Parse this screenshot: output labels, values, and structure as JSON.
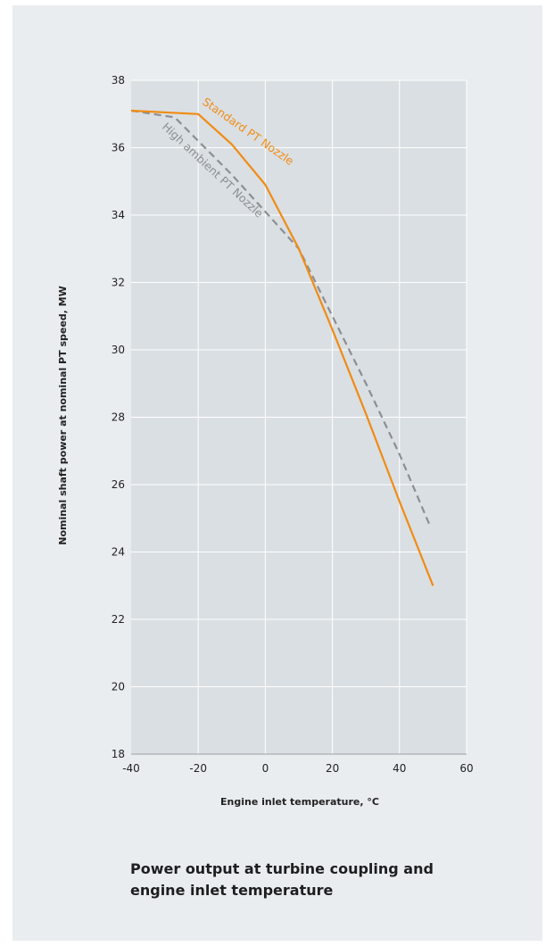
{
  "caption": {
    "line1": "Power output at turbine coupling and",
    "line2": "engine inlet temperature"
  },
  "chart_data": {
    "type": "line",
    "xlabel": "Engine inlet temperature, °C",
    "ylabel": "Nominal shaft power at nominal PT speed, MW",
    "xlim": [
      -40,
      60
    ],
    "ylim": [
      18,
      38
    ],
    "xticks": [
      -40,
      -20,
      0,
      20,
      40,
      60
    ],
    "yticks": [
      18,
      20,
      22,
      24,
      26,
      28,
      30,
      32,
      34,
      36,
      38
    ],
    "grid": true,
    "legend": "inline labels along lines",
    "colors": {
      "plot_background": "#dadfe3",
      "panel_background": "#e9edf0",
      "grid": "#ffffff",
      "standard": "#f08c14",
      "high_ambient": "#8c8f92"
    },
    "series": [
      {
        "name": "Standard PT Nozzle",
        "style": "solid",
        "x": [
          -40,
          -20,
          -10,
          0,
          10,
          20,
          30,
          40,
          50
        ],
        "y": [
          37.1,
          37.0,
          36.1,
          34.9,
          33.0,
          30.6,
          28.1,
          25.5,
          23.0
        ]
      },
      {
        "name": "High ambient PT Nozzle",
        "style": "dashed",
        "x": [
          -40,
          -27,
          -20,
          -10,
          0,
          10,
          20,
          30,
          40,
          49
        ],
        "y": [
          37.1,
          36.9,
          36.2,
          35.2,
          34.1,
          33.0,
          31.0,
          29.0,
          26.9,
          24.8
        ]
      }
    ]
  }
}
